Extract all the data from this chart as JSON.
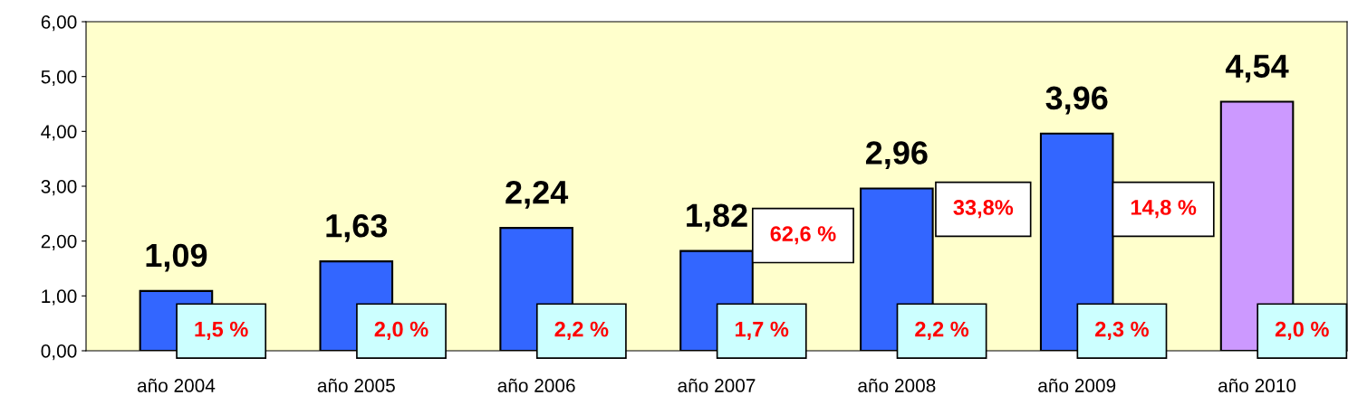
{
  "chart_data": {
    "type": "bar",
    "categories": [
      "año 2004",
      "año 2005",
      "año 2006",
      "año 2007",
      "año 2008",
      "año 2009",
      "año 2010"
    ],
    "values": [
      1.09,
      1.63,
      2.24,
      1.82,
      2.96,
      3.96,
      4.54
    ],
    "value_labels": [
      "1,09",
      "1,63",
      "2,24",
      "1,82",
      "2,96",
      "3,96",
      "4,54"
    ],
    "colors": [
      "#3366ff",
      "#3366ff",
      "#3366ff",
      "#3366ff",
      "#3366ff",
      "#3366ff",
      "#cc99ff"
    ],
    "ylim": [
      0,
      6
    ],
    "yticks": [
      {
        "value": 0,
        "label": "0,00"
      },
      {
        "value": 1,
        "label": "1,00"
      },
      {
        "value": 2,
        "label": "2,00"
      },
      {
        "value": 3,
        "label": "3,00"
      },
      {
        "value": 4,
        "label": "4,00"
      },
      {
        "value": 5,
        "label": "5,00"
      },
      {
        "value": 6,
        "label": "6,00"
      }
    ],
    "grid": false,
    "annotations": [
      "1,5 %",
      "2,0 %",
      "2,2 %",
      "1,7 %",
      "2,2 %",
      "2,3 %",
      "2,0 %",
      "62,6 %",
      "33,8%",
      "14,8 %"
    ]
  }
}
